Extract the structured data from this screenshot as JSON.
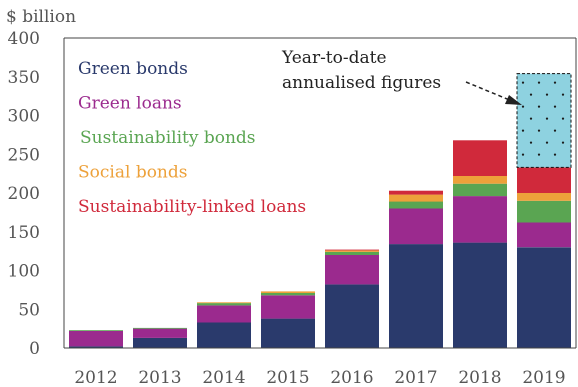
{
  "chart_data": {
    "type": "bar",
    "stacked": true,
    "unit_label": "$ billion",
    "categories": [
      "2012",
      "2013",
      "2014",
      "2015",
      "2016",
      "2017",
      "2018",
      "2019"
    ],
    "ylim": [
      0,
      400
    ],
    "y_ticks": [
      "0",
      "50",
      "100",
      "150",
      "200",
      "250",
      "300",
      "350",
      "400"
    ],
    "grid": false,
    "legend_position": "top-left",
    "series": [
      {
        "name": "Green bonds",
        "color": "#2a3a6c",
        "values": [
          2,
          13,
          33,
          38,
          82,
          134,
          136,
          130
        ]
      },
      {
        "name": "Green loans",
        "color": "#9b2a8e",
        "values": [
          20,
          12,
          22,
          30,
          38,
          46,
          60,
          32
        ]
      },
      {
        "name": "Sustainability bonds",
        "color": "#5aa552",
        "values": [
          1,
          1,
          3,
          3,
          4,
          9,
          16,
          28
        ]
      },
      {
        "name": "Social bonds",
        "color": "#eda13a",
        "values": [
          0,
          0,
          1,
          2,
          2,
          9,
          10,
          10
        ]
      },
      {
        "name": "Sustainability-linked loans",
        "color": "#d0293b",
        "values": [
          0,
          0,
          0,
          0,
          1,
          5,
          46,
          33
        ]
      }
    ],
    "ytd_overlay": {
      "label": "Year-to-date annualised figures",
      "label_lines": [
        "Year-to-date",
        "annualised figures"
      ],
      "category": "2019",
      "from": 233,
      "to": 354,
      "color": "#8ed2e0"
    }
  }
}
